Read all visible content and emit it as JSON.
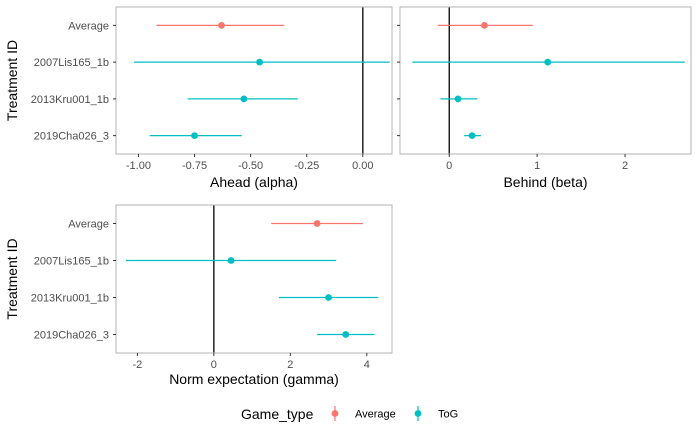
{
  "legend": {
    "title": "Game_type",
    "items": [
      {
        "label": "Average",
        "color": "#F8766D"
      },
      {
        "label": "ToG",
        "color": "#00BFC4"
      }
    ]
  },
  "colors": {
    "Average": "#F8766D",
    "ToG": "#00BFC4",
    "ref_line": "#000000",
    "panel_border": "#b3b3b3"
  },
  "chart_data": [
    {
      "type": "scatter",
      "subtype": "pointrange",
      "xlabel": "Ahead (alpha)",
      "ylabel": "Treatment ID",
      "categories": [
        "Average",
        "2007Lis165_1b",
        "2013Kru001_1b",
        "2019Cha026_3"
      ],
      "xlim": [
        -1.1,
        0.13
      ],
      "xticks": [
        -1.0,
        -0.75,
        -0.5,
        -0.25,
        0.0
      ],
      "xtick_labels": [
        "-1.00",
        "-0.75",
        "-0.50",
        "-0.25",
        "0.00"
      ],
      "reference_line": 0,
      "grid": false,
      "points": [
        {
          "category": "Average",
          "group": "Average",
          "estimate": -0.63,
          "lower": -0.92,
          "upper": -0.35
        },
        {
          "category": "2007Lis165_1b",
          "group": "ToG",
          "estimate": -0.46,
          "lower": -1.02,
          "upper": 0.12
        },
        {
          "category": "2013Kru001_1b",
          "group": "ToG",
          "estimate": -0.53,
          "lower": -0.78,
          "upper": -0.29
        },
        {
          "category": "2019Cha026_3",
          "group": "ToG",
          "estimate": -0.75,
          "lower": -0.95,
          "upper": -0.54
        }
      ]
    },
    {
      "type": "scatter",
      "subtype": "pointrange",
      "xlabel": "Behind (beta)",
      "ylabel": "",
      "categories": [
        "Average",
        "2007Lis165_1b",
        "2013Kru001_1b",
        "2019Cha026_3"
      ],
      "xlim": [
        -0.56,
        2.75
      ],
      "xticks": [
        0,
        1,
        2
      ],
      "xtick_labels": [
        "0",
        "1",
        "2"
      ],
      "reference_line": 0,
      "grid": false,
      "points": [
        {
          "category": "Average",
          "group": "Average",
          "estimate": 0.4,
          "lower": -0.13,
          "upper": 0.95
        },
        {
          "category": "2007Lis165_1b",
          "group": "ToG",
          "estimate": 1.12,
          "lower": -0.42,
          "upper": 2.68
        },
        {
          "category": "2013Kru001_1b",
          "group": "ToG",
          "estimate": 0.1,
          "lower": -0.1,
          "upper": 0.32
        },
        {
          "category": "2019Cha026_3",
          "group": "ToG",
          "estimate": 0.26,
          "lower": 0.17,
          "upper": 0.36
        }
      ]
    },
    {
      "type": "scatter",
      "subtype": "pointrange",
      "xlabel": "Norm expectation (gamma)",
      "ylabel": "Treatment ID",
      "categories": [
        "Average",
        "2007Lis165_1b",
        "2013Kru001_1b",
        "2019Cha026_3"
      ],
      "xlim": [
        -2.56,
        4.66
      ],
      "xticks": [
        -2,
        0,
        2,
        4
      ],
      "xtick_labels": [
        "-2",
        "0",
        "2",
        "4"
      ],
      "reference_line": 0,
      "grid": false,
      "points": [
        {
          "category": "Average",
          "group": "Average",
          "estimate": 2.7,
          "lower": 1.5,
          "upper": 3.9
        },
        {
          "category": "2007Lis165_1b",
          "group": "ToG",
          "estimate": 0.45,
          "lower": -2.3,
          "upper": 3.2
        },
        {
          "category": "2013Kru001_1b",
          "group": "ToG",
          "estimate": 3.0,
          "lower": 1.7,
          "upper": 4.3
        },
        {
          "category": "2019Cha026_3",
          "group": "ToG",
          "estimate": 3.45,
          "lower": 2.7,
          "upper": 4.2
        }
      ]
    }
  ]
}
